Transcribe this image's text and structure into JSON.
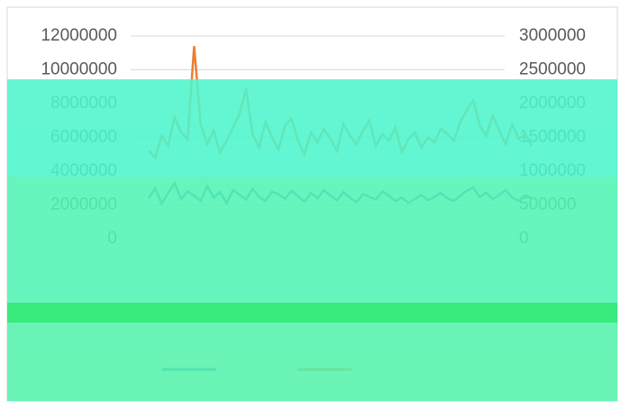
{
  "chart_data": {
    "type": "line",
    "categories": [
      null,
      null,
      null,
      null,
      null,
      null,
      null,
      null,
      null,
      null,
      null,
      null,
      null,
      null,
      null,
      null,
      null,
      null,
      null,
      null,
      null,
      null,
      null,
      null,
      null,
      null,
      null,
      null,
      null,
      null,
      null,
      null,
      null,
      null,
      null,
      null,
      null,
      null,
      null,
      null,
      null,
      null,
      null,
      null,
      null,
      null,
      null,
      null,
      null,
      null,
      null,
      null,
      null,
      null,
      null,
      null,
      null,
      null,
      null,
      null
    ],
    "series": [
      {
        "color": "#4472c4",
        "axis": "y2",
        "values": [
          600000,
          750000,
          520000,
          680000,
          820000,
          590000,
          700000,
          640000,
          560000,
          780000,
          610000,
          690000,
          530000,
          720000,
          650000,
          580000,
          740000,
          620000,
          560000,
          700000,
          660000,
          590000,
          710000,
          630000,
          550000,
          680000,
          600000,
          720000,
          640000,
          570000,
          690000,
          610000,
          540000,
          660000,
          620000,
          580000,
          700000,
          640000,
          560000,
          610000,
          530000,
          590000,
          650000,
          570000,
          620000,
          680000,
          600000,
          560000,
          640000,
          710000,
          760000,
          620000,
          680000,
          590000,
          650000,
          720000,
          610000,
          560000,
          640000,
          600000
        ]
      },
      {
        "color": "#ed7d31",
        "values": [
          5200000,
          4800000,
          6100000,
          5500000,
          7200000,
          6300000,
          5900000,
          11400000,
          6800000,
          5600000,
          6400000,
          5100000,
          5800000,
          6600000,
          7400000,
          8900000,
          6200000,
          5400000,
          6900000,
          6000000,
          5300000,
          6700000,
          7100000,
          5800000,
          5000000,
          6300000,
          5700000,
          6500000,
          5900000,
          5200000,
          6800000,
          6100000,
          5600000,
          6400000,
          7000000,
          5500000,
          6200000,
          5800000,
          6600000,
          5100000,
          5900000,
          6300000,
          5400000,
          6000000,
          5700000,
          6500000,
          6200000,
          5800000,
          6900000,
          7600000,
          8200000,
          6700000,
          6100000,
          7300000,
          6400000,
          5600000,
          6800000,
          5900000,
          6200000,
          5500000
        ]
      }
    ],
    "ylim": [
      0,
      12000000
    ],
    "yticks": [
      0,
      2000000,
      4000000,
      6000000,
      8000000,
      10000000,
      12000000
    ],
    "y2lim": [
      0,
      3000000
    ],
    "y2ticks": [
      0,
      500000,
      1000000,
      1500000,
      2000000,
      2500000,
      3000000
    ],
    "grid": true
  }
}
